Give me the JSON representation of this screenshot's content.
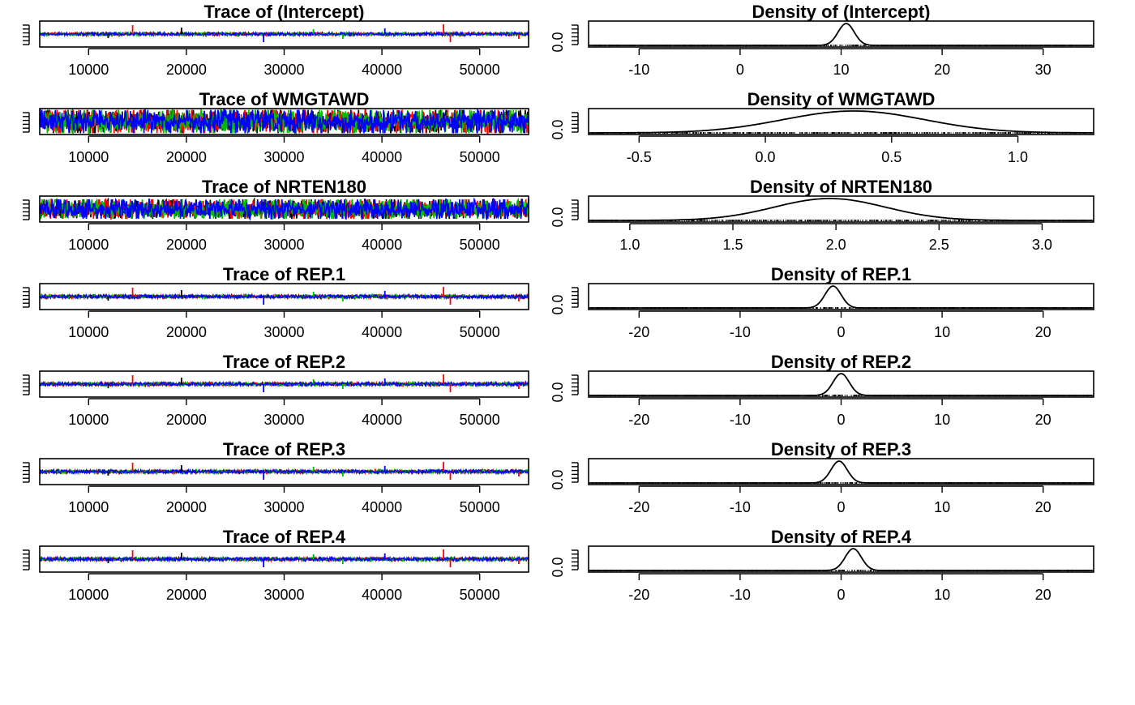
{
  "colors": {
    "chain1": "#000000",
    "chain2": "#ff0000",
    "chain3": "#00bb00",
    "chain4": "#0000ff",
    "frame": "#000000",
    "background": "#ffffff"
  },
  "chart_data": [
    {
      "type": "line",
      "kind": "trace",
      "title": "Trace of (Intercept)",
      "x_ticks": [
        "10000",
        "20000",
        "30000",
        "40000",
        "50000"
      ],
      "xlim": [
        5000,
        55000
      ],
      "spread": 0.12,
      "spikes": true
    },
    {
      "type": "line",
      "kind": "density",
      "title": "Density of (Intercept)",
      "y_tick": "0.0",
      "x_ticks": [
        "-10",
        "0",
        "10",
        "20",
        "30"
      ],
      "xlim": [
        -15,
        35
      ],
      "peak_x": 10.5,
      "sd": 0.8
    },
    {
      "type": "line",
      "kind": "trace",
      "title": "Trace of WMGTAWD",
      "x_ticks": [
        "10000",
        "20000",
        "30000",
        "40000",
        "50000"
      ],
      "xlim": [
        5000,
        55000
      ],
      "spread": 0.9,
      "spikes": false
    },
    {
      "type": "line",
      "kind": "density",
      "title": "Density of WMGTAWD",
      "y_tick": "0.0",
      "x_ticks": [
        "-0.5",
        "0.0",
        "0.5",
        "1.0"
      ],
      "xlim": [
        -0.7,
        1.3
      ],
      "peak_x": 0.35,
      "sd": 0.28
    },
    {
      "type": "line",
      "kind": "trace",
      "title": "Trace of NRTEN180",
      "x_ticks": [
        "10000",
        "20000",
        "30000",
        "40000",
        "50000"
      ],
      "xlim": [
        5000,
        55000
      ],
      "spread": 0.75,
      "spikes": false
    },
    {
      "type": "line",
      "kind": "density",
      "title": "Density of NRTEN180",
      "y_tick": "0.0",
      "x_ticks": [
        "1.0",
        "1.5",
        "2.0",
        "2.5",
        "3.0"
      ],
      "xlim": [
        0.8,
        3.25
      ],
      "peak_x": 1.97,
      "sd": 0.27
    },
    {
      "type": "line",
      "kind": "trace",
      "title": "Trace of REP.1",
      "x_ticks": [
        "10000",
        "20000",
        "30000",
        "40000",
        "50000"
      ],
      "xlim": [
        5000,
        55000
      ],
      "spread": 0.14,
      "spikes": true
    },
    {
      "type": "line",
      "kind": "density",
      "title": "Density of REP.1",
      "y_tick": "0.0",
      "x_ticks": [
        "-20",
        "-10",
        "0",
        "10",
        "20"
      ],
      "xlim": [
        -25,
        25
      ],
      "peak_x": -0.8,
      "sd": 0.8
    },
    {
      "type": "line",
      "kind": "trace",
      "title": "Trace of REP.2",
      "x_ticks": [
        "10000",
        "20000",
        "30000",
        "40000",
        "50000"
      ],
      "xlim": [
        5000,
        55000
      ],
      "spread": 0.14,
      "spikes": true
    },
    {
      "type": "line",
      "kind": "density",
      "title": "Density of REP.2",
      "y_tick": "0.0",
      "x_ticks": [
        "-20",
        "-10",
        "0",
        "10",
        "20"
      ],
      "xlim": [
        -25,
        25
      ],
      "peak_x": 0.0,
      "sd": 0.8
    },
    {
      "type": "line",
      "kind": "trace",
      "title": "Trace of REP.3",
      "x_ticks": [
        "10000",
        "20000",
        "30000",
        "40000",
        "50000"
      ],
      "xlim": [
        5000,
        55000
      ],
      "spread": 0.14,
      "spikes": true
    },
    {
      "type": "line",
      "kind": "density",
      "title": "Density of REP.3",
      "y_tick": "0.0",
      "x_ticks": [
        "-20",
        "-10",
        "0",
        "10",
        "20"
      ],
      "xlim": [
        -25,
        25
      ],
      "peak_x": -0.2,
      "sd": 0.8
    },
    {
      "type": "line",
      "kind": "trace",
      "title": "Trace of REP.4",
      "x_ticks": [
        "10000",
        "20000",
        "30000",
        "40000",
        "50000"
      ],
      "xlim": [
        5000,
        55000
      ],
      "spread": 0.14,
      "spikes": true
    },
    {
      "type": "line",
      "kind": "density",
      "title": "Density of REP.4",
      "y_tick": "0.0",
      "x_ticks": [
        "-20",
        "-10",
        "0",
        "10",
        "20"
      ],
      "xlim": [
        -25,
        25
      ],
      "peak_x": 1.2,
      "sd": 0.8
    }
  ]
}
